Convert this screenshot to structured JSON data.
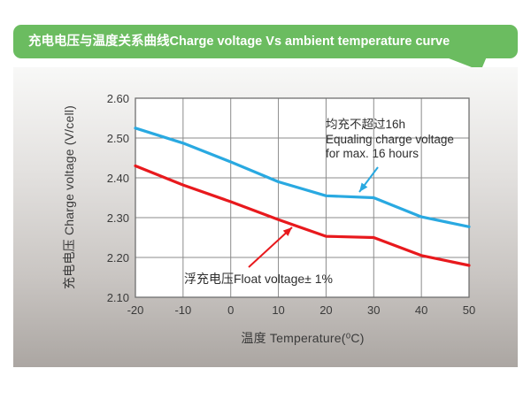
{
  "header": {
    "title": "充电电压与温度关系曲线Charge voltage Vs ambient temperature curve"
  },
  "colors": {
    "banner_green": "#6bbc60",
    "equalize_blue": "#29a9e1",
    "float_red": "#e8191d",
    "grid_gray": "#8b8b8b",
    "plot_border": "#707070",
    "plot_bg": "#ffffff",
    "text_dark": "#2e2e2e"
  },
  "chart_data": {
    "type": "line",
    "title": "充电电压与温度关系曲线Charge voltage Vs ambient temperature curve",
    "xlabel": "温度 Temperature(⁰C)",
    "ylabel": "充电电压 Charge voltage (V/cell)",
    "xlim": [
      -20,
      50
    ],
    "ylim": [
      2.1,
      2.6
    ],
    "grid": true,
    "x_ticks": [
      "-20",
      "-10",
      "0",
      "10",
      "20",
      "30",
      "40",
      "50"
    ],
    "y_ticks": [
      "2.60",
      "2.50",
      "2.40",
      "2.30",
      "2.20",
      "2.10"
    ],
    "series": [
      {
        "name": "Equaling charge voltage",
        "color": "#29a9e1",
        "x": [
          -20,
          -10,
          0,
          10,
          20,
          30,
          40,
          50
        ],
        "y": [
          2.525,
          2.487,
          2.44,
          2.39,
          2.355,
          2.35,
          2.302,
          2.277
        ]
      },
      {
        "name": "Float voltage",
        "color": "#e8191d",
        "x": [
          -20,
          -10,
          0,
          10,
          20,
          30,
          40,
          50
        ],
        "y": [
          2.43,
          2.382,
          2.34,
          2.295,
          2.253,
          2.25,
          2.205,
          2.18
        ]
      }
    ],
    "annotations": [
      {
        "id": "equalize",
        "lines": [
          "均充不超过16h",
          "Equaling charge voltage",
          "for max. 16 hours"
        ],
        "arrow_color": "#29a9e1"
      },
      {
        "id": "float",
        "lines": [
          "浮充电压Float voltage± 1%"
        ],
        "arrow_color": "#e8191d"
      }
    ],
    "legend_position": "none"
  }
}
